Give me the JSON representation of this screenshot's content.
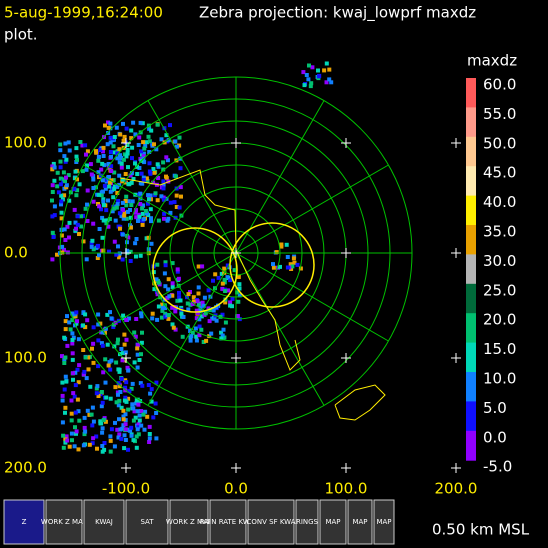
{
  "header": {
    "timestamp": "5-aug-1999,16:24:00",
    "title": "Zebra projection: kwaj_lowprf maxdz",
    "title_cont": "plot."
  },
  "y_axis_labels": [
    "100.0",
    "0.0",
    "100.0",
    "200.0"
  ],
  "x_axis_labels": [
    "-100.0",
    "0.0",
    "100.0",
    "200.0"
  ],
  "colorbar": {
    "label": "maxdz",
    "ticks": [
      "60.0",
      "55.0",
      "50.0",
      "45.0",
      "40.0",
      "35.0",
      "30.0",
      "25.0",
      "20.0",
      "15.0",
      "10.0",
      "5.0",
      "0.0",
      "-5.0"
    ],
    "colors": [
      "#ff5a5a",
      "#ff9a8a",
      "#ffc890",
      "#ffeab0",
      "#ffee00",
      "#e8a000",
      "#b4b4b4",
      "#006a3a",
      "#00c070",
      "#00d8b8",
      "#1080ff",
      "#1010ff",
      "#9000ff"
    ]
  },
  "toolbar": {
    "icons": [
      {
        "label": "Z"
      },
      {
        "label": "WORK Z MAP"
      },
      {
        "label": "KWAJ"
      },
      {
        "label": "SAT"
      },
      {
        "label": "WORK Z MAP"
      },
      {
        "label": "RAIN RATE KWAJ"
      },
      {
        "label": "CONV SF KWA"
      },
      {
        "label": "RINGS"
      },
      {
        "label": "MAP"
      },
      {
        "label": "MAP"
      },
      {
        "label": "MAP"
      }
    ],
    "status": "0.50 km MSL"
  }
}
